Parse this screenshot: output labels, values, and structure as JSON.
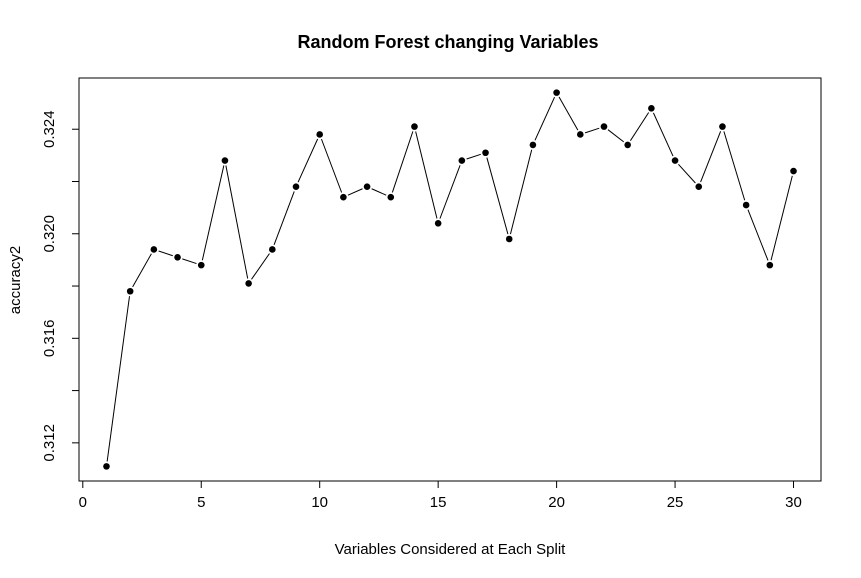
{
  "chart_data": {
    "type": "line",
    "title": "Random Forest changing Variables",
    "xlabel": "Variables Considered at Each Split",
    "ylabel": "accuracy2",
    "x": [
      1,
      2,
      3,
      4,
      5,
      6,
      7,
      8,
      9,
      10,
      11,
      12,
      13,
      14,
      15,
      16,
      17,
      18,
      19,
      20,
      21,
      22,
      23,
      24,
      25,
      26,
      27,
      28,
      29,
      30
    ],
    "y": [
      0.3111,
      0.3178,
      0.3194,
      0.3191,
      0.3188,
      0.3228,
      0.3181,
      0.3194,
      0.3218,
      0.3238,
      0.3214,
      0.3218,
      0.3214,
      0.3241,
      0.3204,
      0.3228,
      0.3231,
      0.3198,
      0.3234,
      0.3254,
      0.3238,
      0.3241,
      0.3234,
      0.3248,
      0.3228,
      0.3218,
      0.3241,
      0.3211,
      0.3188,
      0.3224
    ],
    "xticks": [
      0,
      5,
      10,
      15,
      20,
      25,
      30
    ],
    "xtick_labels": [
      "0",
      "5",
      "10",
      "15",
      "20",
      "25",
      "30"
    ],
    "yticks": [
      0.312,
      0.314,
      0.316,
      0.318,
      0.32,
      0.322,
      0.324
    ],
    "ytick_labels": [
      "0.312",
      "",
      "0.316",
      "",
      "0.320",
      "",
      "0.324"
    ],
    "xlim": [
      -0.16,
      31.16
    ],
    "ylim": [
      0.31054,
      0.32596
    ],
    "grid": false,
    "line_color": "#000000",
    "point_color": "#000000"
  }
}
